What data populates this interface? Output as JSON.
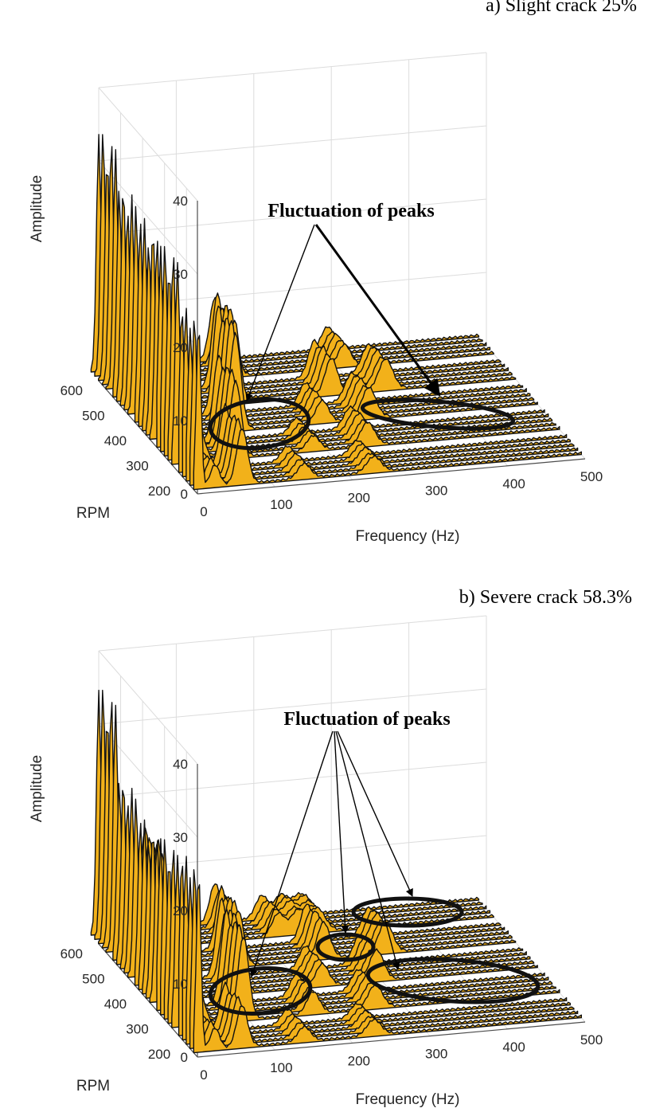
{
  "chart_data": [
    {
      "type": "area",
      "title": "a) Slight crack 25%",
      "annotation": "Fluctuation of peaks",
      "xlabel": "Frequency (Hz)",
      "ylabel": "RPM",
      "zlabel": "Amplitude",
      "xlim": [
        0,
        500
      ],
      "ylim": [
        150,
        600
      ],
      "zlim": [
        0,
        40
      ],
      "xticks": [
        "0",
        "100",
        "200",
        "300",
        "400",
        "500"
      ],
      "yticks": [
        "200",
        "300",
        "400",
        "500",
        "600"
      ],
      "zticks": [
        "0",
        "10",
        "20",
        "30",
        "40"
      ],
      "grid": true,
      "fill_color": "#f2b11a",
      "rpm_slices": [
        600,
        500,
        400,
        300,
        200
      ],
      "peaks_by_rpm": [
        {
          "rpm": 600,
          "peaks": [
            [
              10,
              32
            ],
            [
              70,
              13
            ],
            [
              160,
              8
            ],
            [
              305,
              3
            ]
          ]
        },
        {
          "rpm": 500,
          "peaks": [
            [
              8,
              28
            ],
            [
              58,
              10
            ],
            [
              135,
              12
            ],
            [
              260,
              5
            ],
            [
              330,
              4
            ]
          ]
        },
        {
          "rpm": 400,
          "peaks": [
            [
              7,
              27
            ],
            [
              47,
              6
            ],
            [
              108,
              14
            ],
            [
              220,
              3
            ],
            [
              280,
              4
            ]
          ]
        },
        {
          "rpm": 300,
          "peaks": [
            [
              5,
              27
            ],
            [
              35,
              4
            ],
            [
              80,
              11
            ],
            [
              180,
              2
            ],
            [
              250,
              3
            ]
          ]
        },
        {
          "rpm": 200,
          "peaks": [
            [
              4,
              22
            ],
            [
              25,
              3
            ],
            [
              60,
              8
            ],
            [
              140,
              2
            ],
            [
              230,
              2
            ]
          ]
        }
      ]
    },
    {
      "type": "area",
      "title": "b) Severe crack 58.3%",
      "annotation": "Fluctuation of peaks",
      "xlabel": "Frequency (Hz)",
      "ylabel": "RPM",
      "zlabel": "Amplitude",
      "xlim": [
        0,
        500
      ],
      "ylim": [
        150,
        600
      ],
      "zlim": [
        0,
        40
      ],
      "xticks": [
        "0",
        "100",
        "200",
        "300",
        "400",
        "500"
      ],
      "yticks": [
        "200",
        "300",
        "400",
        "500",
        "600"
      ],
      "zticks": [
        "0",
        "10",
        "20",
        "30",
        "40"
      ],
      "grid": true,
      "fill_color": "#f2b11a",
      "rpm_slices": [
        600,
        500,
        400,
        300,
        200
      ],
      "peaks_by_rpm": [
        {
          "rpm": 600,
          "peaks": [
            [
              10,
              33
            ],
            [
              70,
              13
            ],
            [
              160,
              5
            ],
            [
              220,
              3
            ],
            [
              245,
              3
            ],
            [
              270,
              3
            ]
          ]
        },
        {
          "rpm": 500,
          "peaks": [
            [
              8,
              24
            ],
            [
              58,
              9
            ],
            [
              140,
              8
            ],
            [
              250,
              5
            ],
            [
              330,
              4
            ]
          ]
        },
        {
          "rpm": 400,
          "peaks": [
            [
              7,
              22
            ],
            [
              47,
              5
            ],
            [
              112,
              10
            ],
            [
              220,
              3
            ],
            [
              290,
              4
            ]
          ]
        },
        {
          "rpm": 300,
          "peaks": [
            [
              5,
              23
            ],
            [
              35,
              4
            ],
            [
              90,
              12
            ],
            [
              180,
              3
            ],
            [
              260,
              3
            ]
          ]
        },
        {
          "rpm": 200,
          "peaks": [
            [
              4,
              24
            ],
            [
              25,
              3
            ],
            [
              60,
              6
            ],
            [
              140,
              2
            ],
            [
              230,
              2
            ]
          ]
        }
      ]
    }
  ]
}
